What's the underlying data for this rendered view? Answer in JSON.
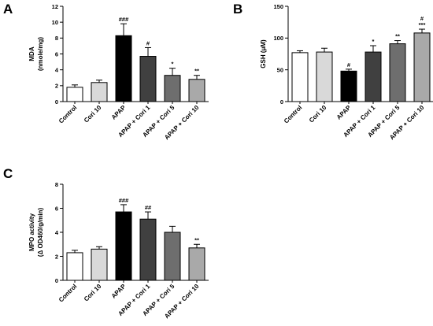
{
  "colors": {
    "fills": [
      "#ffffff",
      "#d9d9d9",
      "#000000",
      "#404040",
      "#6e6e6e",
      "#a9a9a9"
    ],
    "stroke": "#000000"
  },
  "chart_data": [
    {
      "type": "bar",
      "panel": "A",
      "categories": [
        "Control",
        "Cori 10",
        "APAP",
        "APAP + Cori 1",
        "APAP + Cori 5",
        "APAP + Cori 10"
      ],
      "values": [
        1.8,
        2.4,
        8.3,
        5.7,
        3.3,
        2.8
      ],
      "errors": [
        0.3,
        0.3,
        1.5,
        1.1,
        0.9,
        0.5
      ],
      "annotations": [
        [],
        [],
        [
          "###"
        ],
        [
          "#"
        ],
        [
          "*"
        ],
        [
          "**"
        ]
      ],
      "ylabel": [
        "MDA",
        "(nmole/mg)"
      ],
      "ylim": [
        0,
        12
      ],
      "yticks": [
        0,
        2,
        4,
        6,
        8,
        10,
        12
      ],
      "grid": false
    },
    {
      "type": "bar",
      "panel": "B",
      "categories": [
        "Control",
        "Cori 10",
        "APAP",
        "APAP + Cori 1",
        "APAP + Cori 5",
        "APAP + Cori 10"
      ],
      "values": [
        77,
        78,
        48,
        78,
        91,
        108
      ],
      "errors": [
        3,
        6,
        3,
        10,
        5,
        6
      ],
      "annotations": [
        [],
        [],
        [
          "#"
        ],
        [
          "*"
        ],
        [
          "**"
        ],
        [
          "#",
          "***"
        ]
      ],
      "ylabel": [
        "GSH (μM)"
      ],
      "ylim": [
        0,
        150
      ],
      "yticks": [
        0,
        50,
        100,
        150
      ],
      "grid": false
    },
    {
      "type": "bar",
      "panel": "C",
      "categories": [
        "Control",
        "Cori 10",
        "APAP",
        "APAP + Cori 1",
        "APAP + Cori 5",
        "APAP + Cori 10"
      ],
      "values": [
        2.3,
        2.6,
        5.7,
        5.1,
        4.0,
        2.7
      ],
      "errors": [
        0.2,
        0.2,
        0.6,
        0.6,
        0.5,
        0.3
      ],
      "annotations": [
        [],
        [],
        [
          "###"
        ],
        [
          "##"
        ],
        [],
        [
          "**"
        ]
      ],
      "ylabel": [
        "MPO activity",
        "(Δ OD460/g/min)"
      ],
      "ylim": [
        0,
        8
      ],
      "yticks": [
        0,
        2,
        4,
        6,
        8
      ],
      "grid": false
    }
  ]
}
